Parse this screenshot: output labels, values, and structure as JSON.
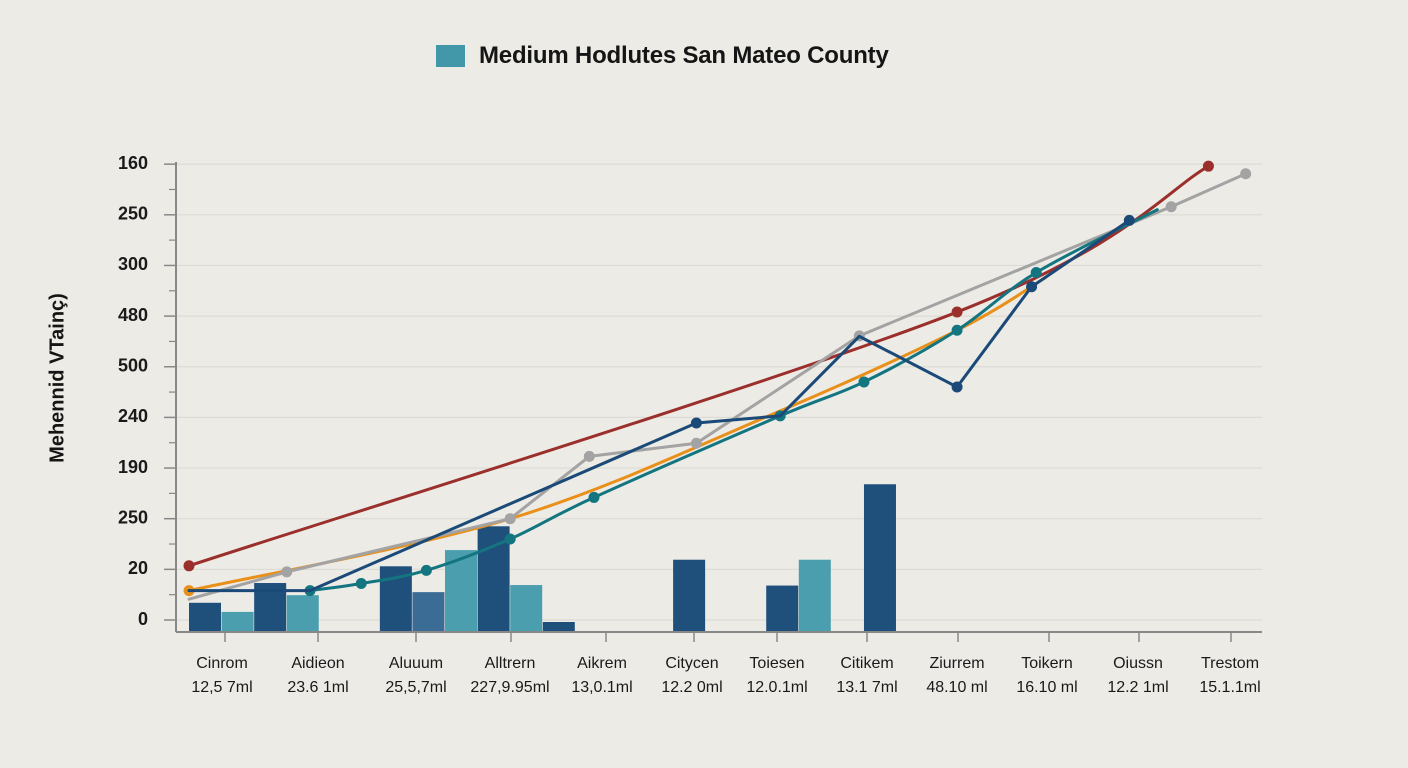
{
  "chart_data": {
    "type": "bar",
    "title": "Medium Hodlutes San Mateo County",
    "legend": [
      {
        "label": "Medium Hodlutes San Mateo County",
        "color": "#4297a8"
      }
    ],
    "legend_position": "top-center",
    "xlabel": "",
    "ylabel": "Mehennid VTainç)",
    "grid": true,
    "y_tick_labels_top_to_bottom": [
      "160",
      "250",
      "300",
      "480",
      "500",
      "240",
      "190",
      "250",
      "20",
      "0"
    ],
    "y_axis_note": "tick labels are non-monotonic; values below are in tick-index units (0 = bottom tick '0', 9 = top tick '160')",
    "ylim": [
      -0.24,
      9.3
    ],
    "categories": [
      {
        "name": "Cinrom",
        "sub": "12,5 7ml"
      },
      {
        "name": "Aidieon",
        "sub": "23.6 1ml"
      },
      {
        "name": "Aluuum",
        "sub": "25,5,7ml"
      },
      {
        "name": "Alltrern",
        "sub": "227,9.95ml"
      },
      {
        "name": "Aikrem",
        "sub": "13,0.1ml"
      },
      {
        "name": "Citycen",
        "sub": "12.2 0ml"
      },
      {
        "name": "Toiesen",
        "sub": "12.0.1ml"
      },
      {
        "name": "Citikem",
        "sub": "13.1 7ml"
      },
      {
        "name": "Ziurrem",
        "sub": "48.10 ml"
      },
      {
        "name": "Toikern",
        "sub": "16.10 ml"
      },
      {
        "name": "Oiussn",
        "sub": "12.2 1ml"
      },
      {
        "name": "Trestom",
        "sub": "15.1.1ml"
      }
    ],
    "bars": [
      {
        "x": 0.0,
        "value": 0.34,
        "series": "dark"
      },
      {
        "x": 0.35,
        "value": 0.16,
        "series": "light"
      },
      {
        "x": 0.7,
        "value": 0.73,
        "series": "dark"
      },
      {
        "x": 1.05,
        "value": 0.49,
        "series": "light"
      },
      {
        "x": 2.05,
        "value": 1.06,
        "series": "dark"
      },
      {
        "x": 2.4,
        "value": 0.55,
        "series": "mid"
      },
      {
        "x": 2.75,
        "value": 1.38,
        "series": "light"
      },
      {
        "x": 3.1,
        "value": 1.85,
        "series": "dark"
      },
      {
        "x": 3.45,
        "value": 0.69,
        "series": "light"
      },
      {
        "x": 3.8,
        "value": 0.0,
        "series": "dark"
      },
      {
        "x": 5.2,
        "value": 1.19,
        "series": "dark"
      },
      {
        "x": 6.2,
        "value": 0.68,
        "series": "dark"
      },
      {
        "x": 6.55,
        "value": 1.19,
        "series": "light"
      },
      {
        "x": 7.25,
        "value": 2.68,
        "series": "dark"
      }
    ],
    "bar_colors": {
      "dark": "#1f4f7b",
      "mid": "#3b6c96",
      "light": "#4a9eae"
    },
    "series": [
      {
        "name": "red",
        "color": "#9b2f2b",
        "smooth": true,
        "points": [
          [
            0.0,
            1.07
          ],
          [
            8.25,
            6.08
          ],
          [
            10.95,
            8.96
          ]
        ],
        "markers": [
          [
            0.0,
            1.07
          ],
          [
            8.25,
            6.08
          ],
          [
            10.95,
            8.96
          ]
        ]
      },
      {
        "name": "orange",
        "color": "#e8901a",
        "smooth": true,
        "points": [
          [
            0.0,
            0.58
          ],
          [
            3.45,
            2.0
          ],
          [
            6.25,
            4.05
          ],
          [
            8.25,
            5.72
          ],
          [
            9.2,
            6.76
          ]
        ],
        "markers": [
          [
            0.0,
            0.58
          ]
        ]
      },
      {
        "name": "gray",
        "color": "#a3a3a3",
        "smooth": false,
        "points": [
          [
            0.0,
            0.41
          ],
          [
            1.05,
            0.95
          ],
          [
            3.45,
            2.0
          ],
          [
            4.3,
            3.23
          ],
          [
            5.45,
            3.49
          ],
          [
            7.2,
            5.61
          ],
          [
            10.55,
            8.16
          ],
          [
            11.35,
            8.81
          ]
        ],
        "markers": [
          [
            1.05,
            0.95
          ],
          [
            3.45,
            2.0
          ],
          [
            4.3,
            3.23
          ],
          [
            5.45,
            3.49
          ],
          [
            7.2,
            5.61
          ],
          [
            10.55,
            8.16
          ],
          [
            11.35,
            8.81
          ]
        ]
      },
      {
        "name": "teal",
        "color": "#137580",
        "smooth": true,
        "points": [
          [
            1.3,
            0.58
          ],
          [
            1.85,
            0.72
          ],
          [
            2.55,
            0.98
          ],
          [
            3.45,
            1.6
          ],
          [
            4.35,
            2.42
          ],
          [
            6.35,
            4.03
          ],
          [
            7.25,
            4.7
          ],
          [
            8.25,
            5.72
          ],
          [
            9.1,
            6.86
          ],
          [
            10.4,
            8.1
          ]
        ],
        "markers": [
          [
            1.3,
            0.58
          ],
          [
            1.85,
            0.72
          ],
          [
            2.55,
            0.98
          ],
          [
            3.45,
            1.6
          ],
          [
            4.35,
            2.42
          ],
          [
            6.35,
            4.03
          ],
          [
            7.25,
            4.7
          ],
          [
            8.25,
            5.72
          ],
          [
            9.1,
            6.86
          ]
        ]
      },
      {
        "name": "navy",
        "color": "#1b4a78",
        "smooth": false,
        "points": [
          [
            0.0,
            0.58
          ],
          [
            1.3,
            0.58
          ],
          [
            5.45,
            3.89
          ],
          [
            6.35,
            4.03
          ],
          [
            7.2,
            5.6
          ],
          [
            8.25,
            4.6
          ],
          [
            9.05,
            6.58
          ],
          [
            10.1,
            7.89
          ]
        ],
        "markers": [
          [
            5.45,
            3.89
          ],
          [
            8.25,
            4.6
          ],
          [
            9.05,
            6.58
          ],
          [
            10.1,
            7.89
          ]
        ]
      }
    ]
  }
}
